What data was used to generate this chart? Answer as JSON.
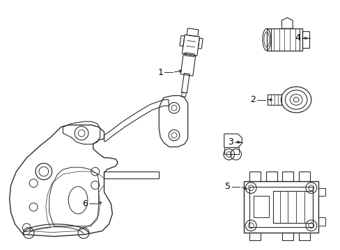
{
  "background_color": "#ffffff",
  "line_color": "#2a2a2a",
  "fig_width": 4.89,
  "fig_height": 3.6,
  "dpi": 100
}
